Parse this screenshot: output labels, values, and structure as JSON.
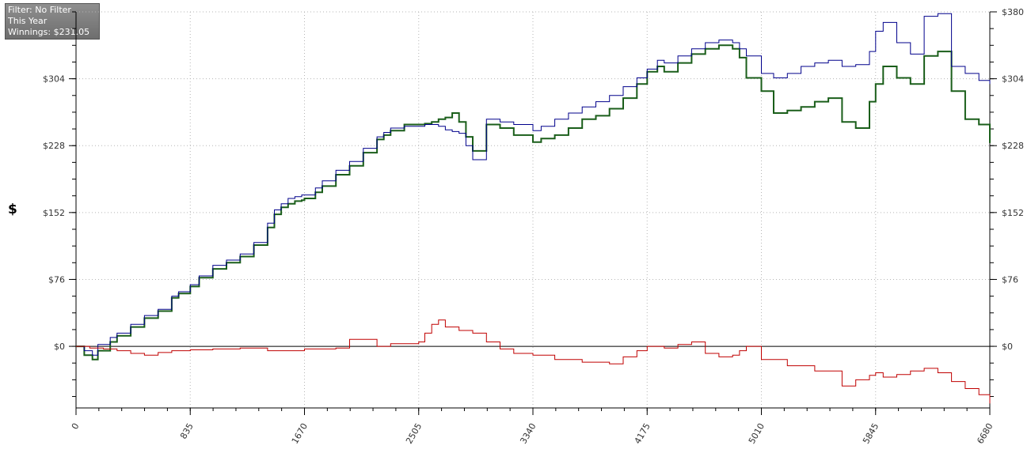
{
  "info_box": {
    "filter": "Filter: No Filter",
    "period": "This Year",
    "winnings": "Winnings: $231.05"
  },
  "colors": {
    "winnings": "#1a5e1a",
    "all_in_ev": "#00008b",
    "showdown_diff": "#c00000",
    "grid": "#b5b5b5",
    "zero_line": "#000000"
  },
  "chart_data": {
    "type": "line",
    "title": "",
    "xlabel": "",
    "ylabel": "$",
    "xlim": [
      0,
      6680
    ],
    "ylim": [
      -70,
      380
    ],
    "x_ticks": [
      "0",
      "835",
      "1670",
      "2505",
      "3340",
      "4175",
      "5010",
      "5845",
      "6680"
    ],
    "y_ticks_left": [
      "$0",
      "$76",
      "$152",
      "$228",
      "$304"
    ],
    "y_ticks_right": [
      "$0",
      "$76",
      "$152",
      "$228",
      "$304",
      "$380"
    ],
    "grid": true,
    "series": [
      {
        "color": "#1a5e1a",
        "x": [
          0,
          60,
          120,
          160,
          250,
          300,
          400,
          500,
          600,
          700,
          750,
          835,
          900,
          1000,
          1100,
          1200,
          1300,
          1400,
          1450,
          1500,
          1550,
          1600,
          1650,
          1670,
          1750,
          1800,
          1900,
          2000,
          2100,
          2200,
          2250,
          2300,
          2400,
          2505,
          2550,
          2600,
          2650,
          2700,
          2750,
          2800,
          2850,
          2900,
          3000,
          3100,
          3200,
          3340,
          3400,
          3500,
          3600,
          3700,
          3800,
          3900,
          4000,
          4100,
          4175,
          4250,
          4300,
          4400,
          4500,
          4600,
          4700,
          4800,
          4850,
          4900,
          5010,
          5100,
          5200,
          5300,
          5400,
          5500,
          5600,
          5700,
          5800,
          5845,
          5900,
          6000,
          6100,
          6200,
          6300,
          6400,
          6500,
          6600,
          6680
        ],
        "values": [
          0,
          -10,
          -15,
          -5,
          5,
          12,
          22,
          32,
          40,
          55,
          60,
          68,
          78,
          88,
          95,
          102,
          115,
          135,
          150,
          158,
          162,
          165,
          166,
          168,
          175,
          182,
          195,
          205,
          220,
          235,
          240,
          245,
          252,
          252,
          253,
          255,
          258,
          260,
          265,
          255,
          238,
          222,
          252,
          248,
          240,
          232,
          236,
          240,
          248,
          258,
          262,
          270,
          282,
          298,
          312,
          318,
          312,
          322,
          332,
          338,
          342,
          338,
          328,
          305,
          290,
          265,
          268,
          272,
          278,
          282,
          255,
          248,
          278,
          298,
          318,
          305,
          298,
          330,
          335,
          290,
          258,
          252,
          231
        ]
      },
      {
        "color": "#00008b",
        "x": [
          0,
          60,
          120,
          160,
          250,
          300,
          400,
          500,
          600,
          700,
          750,
          835,
          900,
          1000,
          1100,
          1200,
          1300,
          1400,
          1450,
          1500,
          1550,
          1600,
          1650,
          1670,
          1750,
          1800,
          1900,
          2000,
          2100,
          2200,
          2250,
          2300,
          2400,
          2505,
          2550,
          2600,
          2650,
          2700,
          2750,
          2800,
          2850,
          2900,
          3000,
          3100,
          3200,
          3340,
          3400,
          3500,
          3600,
          3700,
          3800,
          3900,
          4000,
          4100,
          4175,
          4250,
          4300,
          4400,
          4500,
          4600,
          4700,
          4800,
          4850,
          4900,
          5010,
          5100,
          5200,
          5300,
          5400,
          5500,
          5600,
          5700,
          5800,
          5845,
          5900,
          6000,
          6100,
          6200,
          6300,
          6400,
          6500,
          6600,
          6680
        ],
        "values": [
          0,
          -5,
          -10,
          2,
          10,
          15,
          25,
          35,
          42,
          57,
          62,
          70,
          80,
          92,
          98,
          105,
          118,
          140,
          155,
          162,
          168,
          170,
          172,
          172,
          180,
          188,
          200,
          210,
          225,
          238,
          243,
          248,
          250,
          250,
          252,
          252,
          250,
          246,
          244,
          242,
          228,
          212,
          258,
          255,
          252,
          245,
          250,
          258,
          265,
          272,
          278,
          285,
          295,
          305,
          315,
          325,
          322,
          330,
          338,
          345,
          348,
          345,
          338,
          330,
          310,
          305,
          310,
          318,
          322,
          325,
          318,
          320,
          335,
          358,
          368,
          345,
          332,
          375,
          378,
          318,
          310,
          302,
          298
        ]
      },
      {
        "color": "#c00000",
        "x": [
          0,
          100,
          200,
          300,
          400,
          500,
          600,
          700,
          835,
          1000,
          1200,
          1400,
          1670,
          1900,
          2000,
          2200,
          2300,
          2505,
          2550,
          2600,
          2650,
          2700,
          2800,
          2900,
          3000,
          3100,
          3200,
          3340,
          3500,
          3700,
          3900,
          4000,
          4100,
          4175,
          4300,
          4400,
          4500,
          4600,
          4700,
          4800,
          4850,
          4900,
          5010,
          5200,
          5400,
          5600,
          5700,
          5800,
          5845,
          5900,
          6000,
          6100,
          6200,
          6300,
          6400,
          6500,
          6600,
          6680
        ],
        "values": [
          0,
          -2,
          -3,
          -5,
          -8,
          -10,
          -7,
          -5,
          -4,
          -3,
          -2,
          -5,
          -3,
          -2,
          8,
          0,
          3,
          5,
          15,
          25,
          30,
          22,
          18,
          15,
          5,
          -3,
          -8,
          -10,
          -15,
          -18,
          -20,
          -12,
          -5,
          0,
          -2,
          2,
          5,
          -8,
          -12,
          -10,
          -5,
          0,
          -15,
          -22,
          -28,
          -45,
          -38,
          -33,
          -30,
          -35,
          -32,
          -28,
          -25,
          -30,
          -40,
          -48,
          -55,
          -65
        ]
      }
    ]
  }
}
